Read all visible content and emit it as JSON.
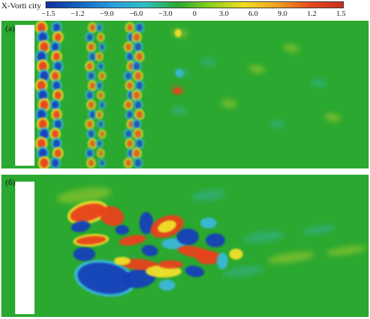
{
  "colorbar": {
    "title": "X-Vorti city",
    "ticks": [
      "−1.5",
      "−1.2",
      "−9.0",
      "−6.0",
      "−3.0",
      "0",
      "3.0",
      "6.0",
      "9.0",
      "1.2",
      "1.5"
    ],
    "colors": [
      "#1030a0",
      "#1565c0",
      "#2a9be0",
      "#30c0c0",
      "#2aa82f",
      "#8ed11a",
      "#f0e020",
      "#f0a020",
      "#e34a20",
      "#c8301c"
    ]
  },
  "panels": [
    {
      "label": "(a)"
    },
    {
      "label": "(б)"
    }
  ],
  "colors": {
    "field": "#2aa82f",
    "positive": "#e8421c",
    "negative": "#1540b8",
    "light_pos": "#f2e02a",
    "light_neg": "#3ab8d8"
  }
}
